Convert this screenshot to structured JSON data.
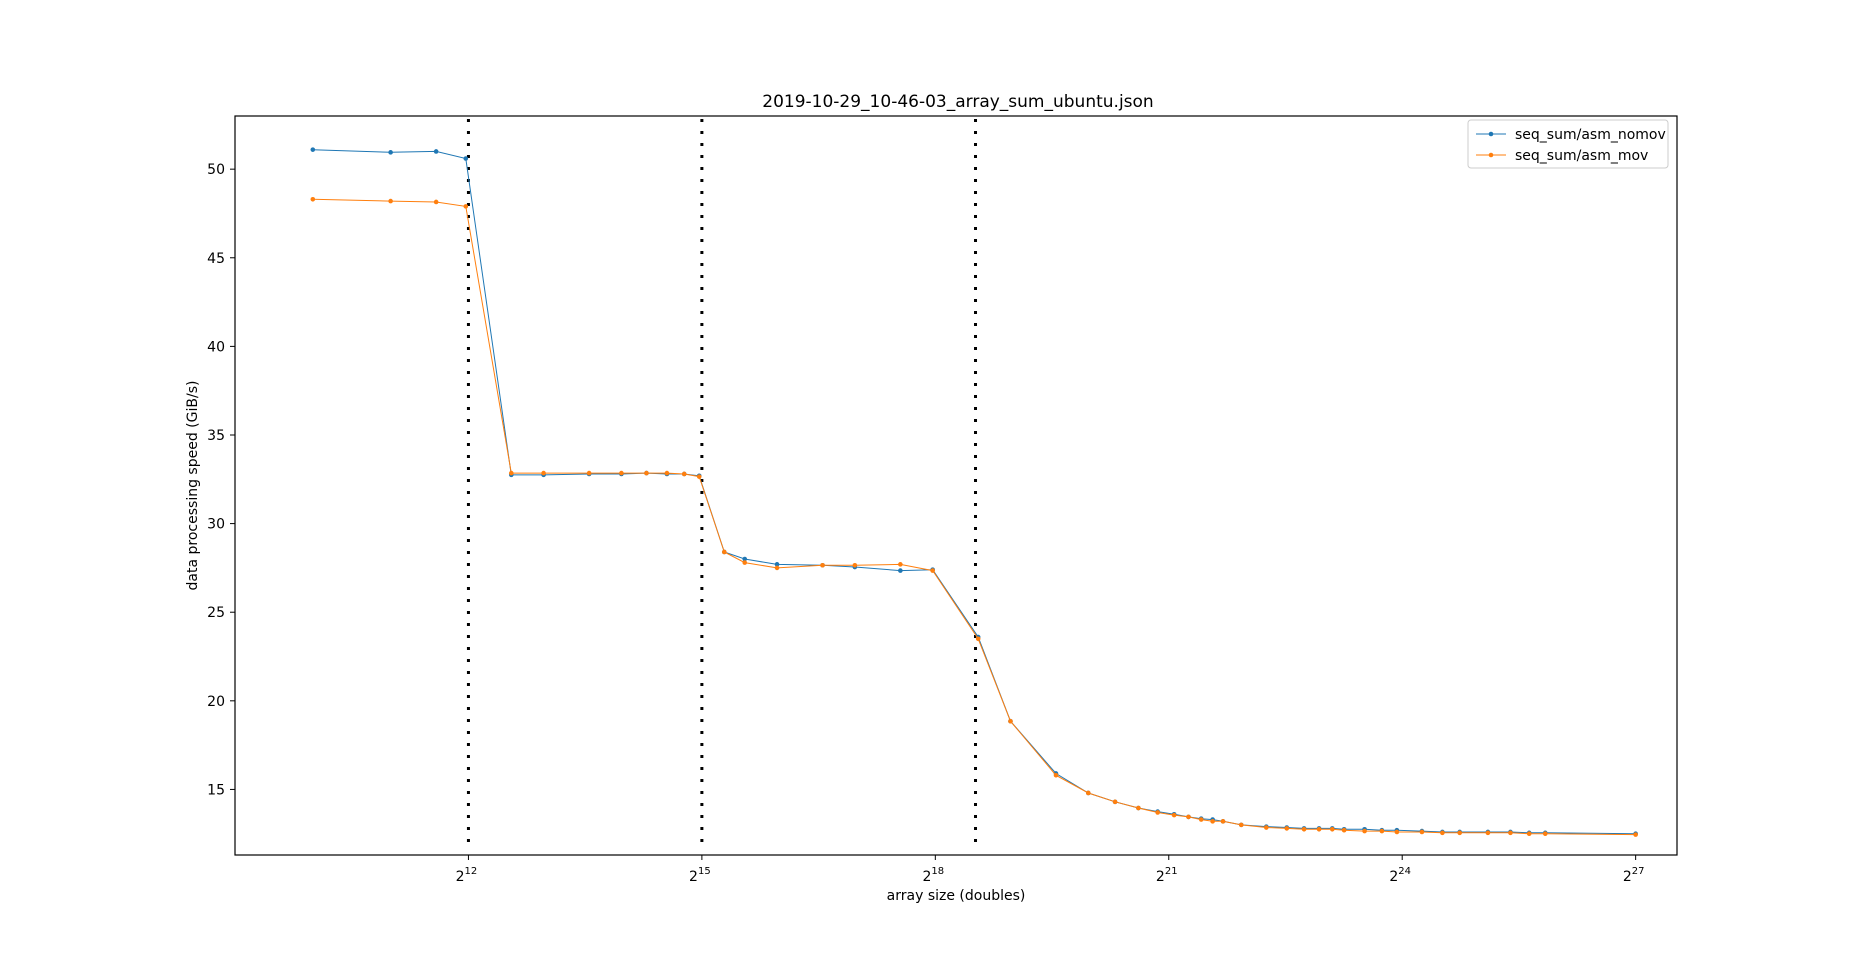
{
  "chart_data": {
    "type": "line",
    "title": "2019-10-29_10-46-03_array_sum_ubuntu.json",
    "xlabel": "array size (doubles)",
    "ylabel": "data processing speed (GiB/s)",
    "x_scale": "log2",
    "xlim": [
      512,
      194000000
    ],
    "ylim": [
      11.3,
      53.0
    ],
    "x_ticks": [
      {
        "value": 4096,
        "base": "2",
        "exp": "12"
      },
      {
        "value": 32768,
        "base": "2",
        "exp": "15"
      },
      {
        "value": 262144,
        "base": "2",
        "exp": "18"
      },
      {
        "value": 2097152,
        "base": "2",
        "exp": "21"
      },
      {
        "value": 16777216,
        "base": "2",
        "exp": "24"
      },
      {
        "value": 134217728,
        "base": "2",
        "exp": "27"
      }
    ],
    "y_ticks": [
      15,
      20,
      25,
      30,
      35,
      40,
      45,
      50
    ],
    "vlines": [
      4096,
      32768,
      375000
    ],
    "grid": false,
    "legend": "top-right",
    "series": [
      {
        "name": "seq_sum/asm_nomov",
        "color": "#1f77b4",
        "x": [
          1024,
          2048,
          3072,
          4000,
          6000,
          8000,
          12000,
          16000,
          20000,
          24000,
          28000,
          32000,
          40000,
          48000,
          64000,
          96000,
          128000,
          192000,
          256000,
          384000,
          512000,
          768000,
          1024000,
          1300000,
          1600000,
          1900000,
          2200000,
          2500000,
          2800000,
          3100000,
          3400000,
          4000000,
          5000000,
          6000000,
          7000000,
          8000000,
          9000000,
          10000000,
          12000000,
          14000000,
          16000000,
          20000000,
          24000000,
          28000000,
          36000000,
          44000000,
          52000000,
          60000000,
          134217728
        ],
        "y": [
          51.1,
          50.95,
          51.0,
          50.6,
          32.75,
          32.75,
          32.8,
          32.8,
          32.85,
          32.8,
          32.8,
          32.7,
          28.4,
          28.0,
          27.7,
          27.65,
          27.55,
          27.35,
          27.4,
          23.6,
          18.85,
          15.9,
          14.8,
          14.3,
          13.95,
          13.75,
          13.6,
          13.45,
          13.35,
          13.3,
          13.2,
          13.0,
          12.9,
          12.85,
          12.8,
          12.8,
          12.8,
          12.75,
          12.75,
          12.7,
          12.7,
          12.65,
          12.6,
          12.6,
          12.6,
          12.6,
          12.55,
          12.55,
          12.5
        ]
      },
      {
        "name": "seq_sum/asm_mov",
        "color": "#ff7f0e",
        "x": [
          1024,
          2048,
          3072,
          4000,
          6000,
          8000,
          12000,
          16000,
          20000,
          24000,
          28000,
          32000,
          40000,
          48000,
          64000,
          96000,
          128000,
          192000,
          256000,
          384000,
          512000,
          768000,
          1024000,
          1300000,
          1600000,
          1900000,
          2200000,
          2500000,
          2800000,
          3100000,
          3400000,
          4000000,
          5000000,
          6000000,
          7000000,
          8000000,
          9000000,
          10000000,
          12000000,
          14000000,
          16000000,
          20000000,
          24000000,
          28000000,
          36000000,
          44000000,
          52000000,
          60000000,
          134217728
        ],
        "y": [
          48.3,
          48.2,
          48.15,
          47.9,
          32.85,
          32.85,
          32.85,
          32.85,
          32.85,
          32.85,
          32.8,
          32.65,
          28.4,
          27.8,
          27.5,
          27.65,
          27.65,
          27.7,
          27.35,
          23.5,
          18.85,
          15.8,
          14.8,
          14.3,
          13.95,
          13.7,
          13.55,
          13.45,
          13.3,
          13.2,
          13.2,
          13.0,
          12.85,
          12.8,
          12.75,
          12.75,
          12.75,
          12.7,
          12.65,
          12.65,
          12.6,
          12.6,
          12.55,
          12.55,
          12.55,
          12.55,
          12.5,
          12.5,
          12.45
        ]
      }
    ]
  }
}
